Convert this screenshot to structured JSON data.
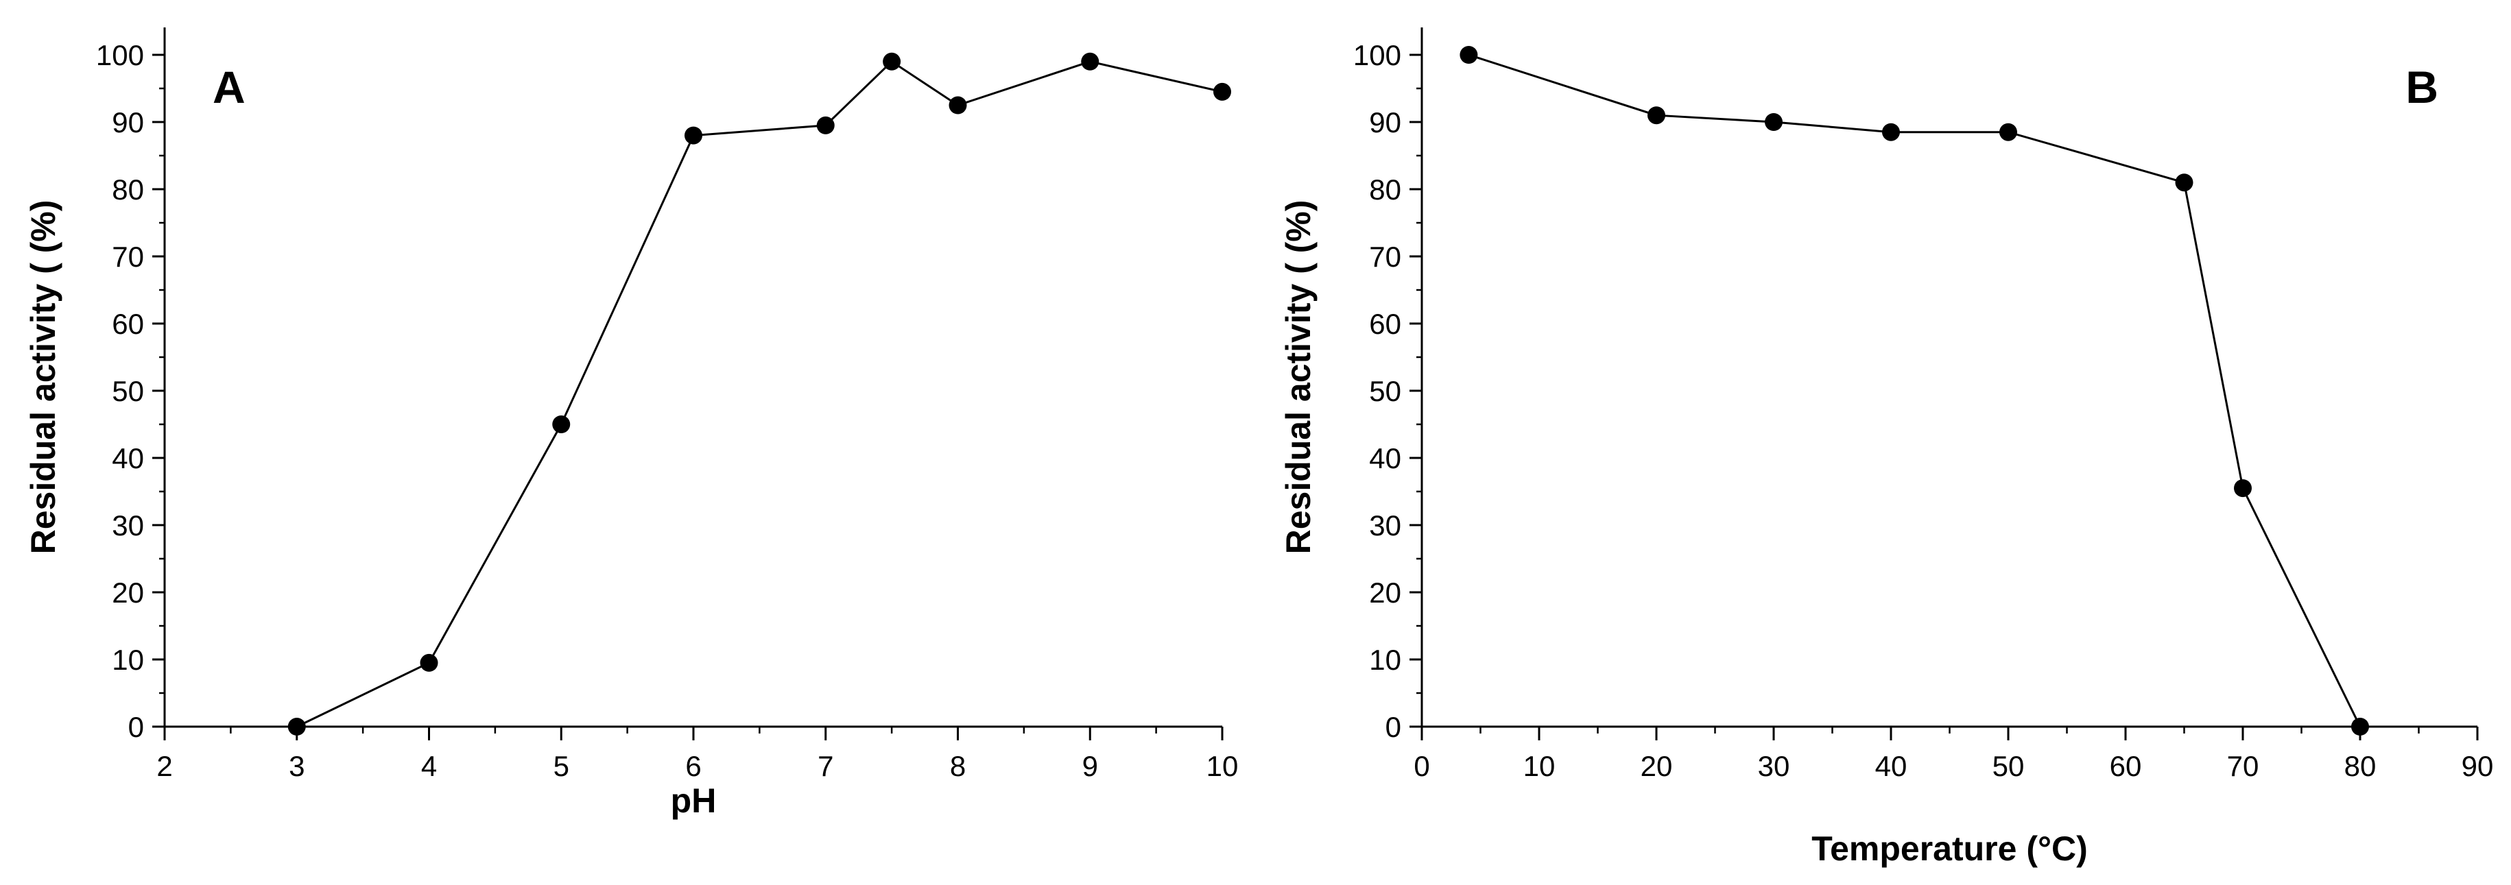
{
  "chart_data": [
    {
      "panel_label": "A",
      "type": "line",
      "xlabel": "pH",
      "ylabel": "Residual activity ( (%)",
      "xlim": [
        2,
        10
      ],
      "ylim": [
        0,
        100
      ],
      "xticks": [
        2,
        3,
        4,
        5,
        6,
        7,
        8,
        9,
        10
      ],
      "yticks": [
        0,
        10,
        20,
        30,
        40,
        50,
        60,
        70,
        80,
        90,
        100
      ],
      "x_minor_step": 0.5,
      "y_minor_step": 5,
      "grid": false,
      "marker": "filled-circle",
      "series": [
        {
          "x": [
            3,
            4,
            5,
            6,
            7,
            7.5,
            8,
            9,
            10
          ],
          "y": [
            0,
            9.5,
            45,
            88,
            89.5,
            99,
            92.5,
            99,
            94.5
          ]
        }
      ]
    },
    {
      "panel_label": "B",
      "type": "line",
      "xlabel": "Temperature  (°C)",
      "ylabel": "Residual activity ( (%)",
      "xlim": [
        0,
        90
      ],
      "ylim": [
        0,
        100
      ],
      "xticks": [
        0,
        10,
        20,
        30,
        40,
        50,
        60,
        70,
        80,
        90
      ],
      "yticks": [
        0,
        10,
        20,
        30,
        40,
        50,
        60,
        70,
        80,
        90,
        100
      ],
      "x_minor_step": 5,
      "y_minor_step": 5,
      "grid": false,
      "marker": "filled-circle",
      "series": [
        {
          "x": [
            4,
            20,
            30,
            40,
            50,
            65,
            70,
            80
          ],
          "y": [
            100,
            91,
            90,
            88.5,
            88.5,
            81,
            35.5,
            0
          ]
        }
      ]
    }
  ],
  "colors": {
    "line": "#000000",
    "marker": "#000000",
    "background": "#ffffff"
  }
}
